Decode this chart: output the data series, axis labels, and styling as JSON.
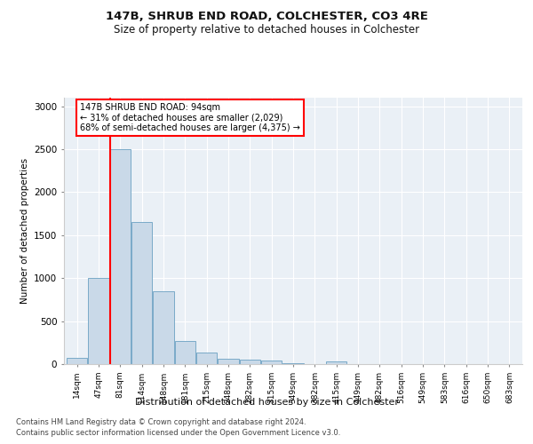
{
  "title": "147B, SHRUB END ROAD, COLCHESTER, CO3 4RE",
  "subtitle": "Size of property relative to detached houses in Colchester",
  "xlabel": "Distribution of detached houses by size in Colchester",
  "ylabel": "Number of detached properties",
  "categories": [
    "14sqm",
    "47sqm",
    "81sqm",
    "114sqm",
    "148sqm",
    "181sqm",
    "215sqm",
    "248sqm",
    "282sqm",
    "315sqm",
    "349sqm",
    "382sqm",
    "415sqm",
    "449sqm",
    "482sqm",
    "516sqm",
    "549sqm",
    "583sqm",
    "616sqm",
    "650sqm",
    "683sqm"
  ],
  "values": [
    75,
    1000,
    2500,
    1650,
    850,
    270,
    130,
    60,
    50,
    40,
    10,
    0,
    30,
    0,
    0,
    0,
    0,
    0,
    0,
    0,
    0
  ],
  "bar_color": "#c9d9e8",
  "bar_edge_color": "#7aaac8",
  "red_line_index": 2,
  "red_line_color": "#ff0000",
  "ylim": [
    0,
    3100
  ],
  "yticks": [
    0,
    500,
    1000,
    1500,
    2000,
    2500,
    3000
  ],
  "annotation_text": "147B SHRUB END ROAD: 94sqm\n← 31% of detached houses are smaller (2,029)\n68% of semi-detached houses are larger (4,375) →",
  "annotation_box_color": "#ffffff",
  "annotation_box_edge": "#ff0000",
  "bg_color": "#eaf0f6",
  "footer_line1": "Contains HM Land Registry data © Crown copyright and database right 2024.",
  "footer_line2": "Contains public sector information licensed under the Open Government Licence v3.0."
}
